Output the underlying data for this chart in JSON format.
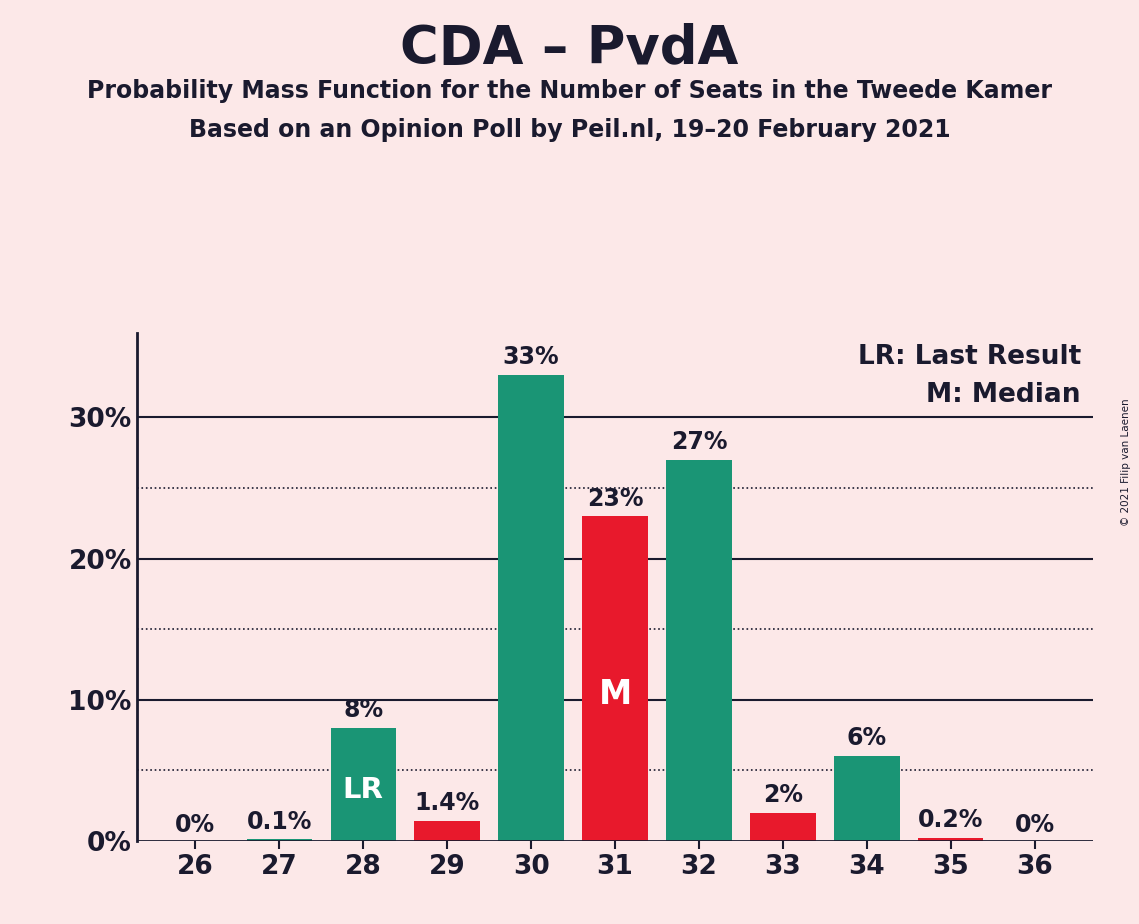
{
  "title": "CDA – PvdA",
  "subtitle1": "Probability Mass Function for the Number of Seats in the Tweede Kamer",
  "subtitle2": "Based on an Opinion Poll by Peil.nl, 19–20 February 2021",
  "copyright": "© 2021 Filip van Laenen",
  "seats": [
    26,
    27,
    28,
    29,
    30,
    31,
    32,
    33,
    34,
    35,
    36
  ],
  "values": [
    0.0,
    0.1,
    8.0,
    1.4,
    33.0,
    23.0,
    27.0,
    2.0,
    6.0,
    0.2,
    0.0
  ],
  "colors": [
    "#1a9575",
    "#1a9575",
    "#1a9575",
    "#e8192c",
    "#1a9575",
    "#e8192c",
    "#1a9575",
    "#e8192c",
    "#1a9575",
    "#e8192c",
    "#1a9575"
  ],
  "labels": [
    "0%",
    "0.1%",
    "8%",
    "1.4%",
    "33%",
    "23%",
    "27%",
    "2%",
    "6%",
    "0.2%",
    "0%"
  ],
  "lr_seat": 28,
  "median_seat": 31,
  "background_color": "#fce8e8",
  "teal_color": "#1a9575",
  "red_color": "#e8192c",
  "solid_gridlines": [
    10,
    20,
    30
  ],
  "dotted_gridlines": [
    5,
    15,
    25
  ],
  "ytick_positions": [
    0,
    10,
    20,
    30
  ],
  "ytick_labels": [
    "0%",
    "10%",
    "20%",
    "30%"
  ],
  "ylim": [
    0,
    36
  ],
  "xlim_left": 25.3,
  "xlim_right": 36.7,
  "legend_lr": "LR: Last Result",
  "legend_m": "M: Median",
  "title_fontsize": 38,
  "subtitle_fontsize": 17,
  "bar_label_fontsize": 17,
  "axis_fontsize": 19,
  "legend_fontsize": 19,
  "lr_label_fontsize": 21,
  "m_label_fontsize": 24,
  "bar_width": 0.78
}
